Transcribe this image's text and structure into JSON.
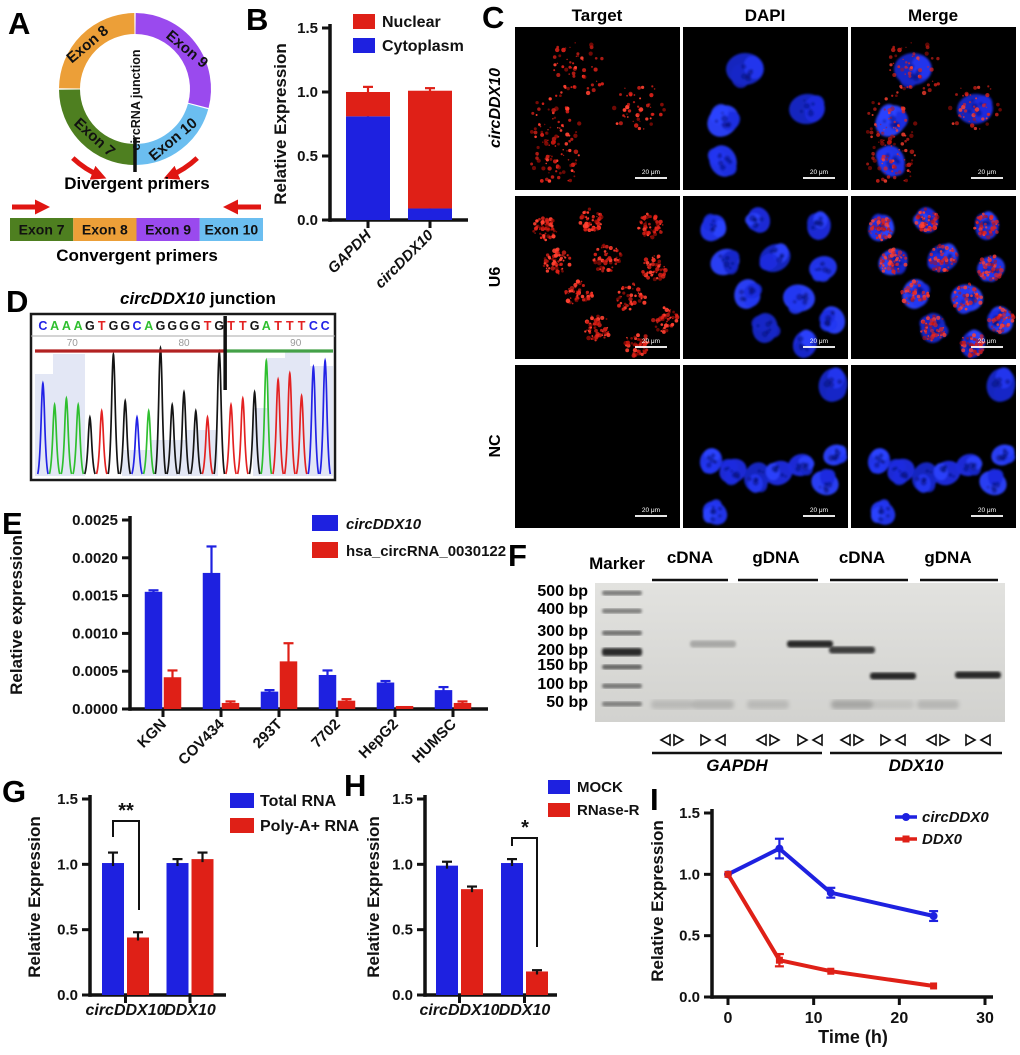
{
  "colors": {
    "blue": "#1E21E0",
    "red": "#DF2017",
    "orange": "#EC9F38",
    "purple": "#9A4AEE",
    "light_blue": "#6BBEF0",
    "green": "#4E7F20",
    "arrow_red": "#E01612",
    "trace_shade": "#DCE1F2"
  },
  "panels": {
    "A": {
      "letter": "A",
      "junction_label": "circRNA junction",
      "divergent_caption": "Divergent primers",
      "convergent_caption": "Convergent primers",
      "circle_exons": [
        {
          "name": "Exon 9",
          "color": "purple",
          "start": 0,
          "end": 105
        },
        {
          "name": "Exon 10",
          "color": "light_blue",
          "start": 105,
          "end": 180
        },
        {
          "name": "Exon 7",
          "color": "green",
          "start": 180,
          "end": 270
        },
        {
          "name": "Exon 8",
          "color": "orange",
          "start": 270,
          "end": 360
        }
      ],
      "linear_exons": [
        {
          "name": "Exon 7",
          "color": "green"
        },
        {
          "name": "Exon 8",
          "color": "orange"
        },
        {
          "name": "Exon 9",
          "color": "purple"
        },
        {
          "name": "Exon 10",
          "color": "light_blue"
        }
      ]
    },
    "B": {
      "letter": "B"
    },
    "C": {
      "letter": "C",
      "col_headers": [
        "Target",
        "DAPI",
        "Merge"
      ],
      "row_labels": [
        "circDDX10",
        "U6",
        "NC"
      ],
      "scale_bar_label": "20 μm"
    },
    "D": {
      "letter": "D",
      "title_gene": "circDDX10",
      "title_suffix": " junction",
      "sequence": "CAAAGTGGCAGGGGTGTTGATTTCC",
      "junction_after": 16,
      "position_labels": [
        {
          "text": "70",
          "index": 2.5
        },
        {
          "text": "80",
          "index": 12
        },
        {
          "text": "90",
          "index": 21.5
        }
      ],
      "base_colors": {
        "A": "#2FBF2F",
        "C": "#2222E6",
        "G": "#141414",
        "T": "#E32222"
      }
    },
    "E": {
      "letter": "E"
    },
    "F": {
      "letter": "F",
      "marker_label": "Marker",
      "group_headers": [
        "cDNA",
        "gDNA",
        "cDNA",
        "gDNA"
      ],
      "bp_labels": [
        "500 bp",
        "400 bp",
        "300 bp",
        "200 bp",
        "150 bp",
        "100 bp",
        "50 bp"
      ],
      "gene_labels": [
        "GAPDH",
        "DDX10"
      ],
      "lanes": [
        {
          "primer": "divergent",
          "band_bp": null,
          "intensity": null
        },
        {
          "primer": "convergent",
          "band_bp": 230,
          "intensity": "faint"
        },
        {
          "primer": "divergent",
          "band_bp": null,
          "intensity": null
        },
        {
          "primer": "convergent",
          "band_bp": 230,
          "intensity": "strong"
        },
        {
          "primer": "divergent",
          "band_bp": 215,
          "intensity": "strong"
        },
        {
          "primer": "convergent",
          "band_bp": 120,
          "intensity": "strong"
        },
        {
          "primer": "divergent",
          "band_bp": null,
          "intensity": null
        },
        {
          "primer": "convergent",
          "band_bp": 122,
          "intensity": "strong"
        }
      ]
    },
    "G": {
      "letter": "G"
    },
    "H": {
      "letter": "H"
    },
    "I": {
      "letter": "I"
    }
  },
  "chart_data": [
    {
      "id": "B",
      "type": "bar",
      "stacked": true,
      "categories": [
        "GAPDH",
        "circDDX10"
      ],
      "categories_italic": true,
      "series": [
        {
          "name": "Nuclear",
          "color": "#DF2017",
          "values": [
            0.19,
            0.92
          ],
          "errors": [
            0.04,
            0.02
          ]
        },
        {
          "name": "Cytoplasm",
          "color": "#1E21E0",
          "values": [
            0.81,
            0.09
          ],
          "errors": [
            0.04,
            0.03
          ]
        }
      ],
      "ylabel": "Relative Expression",
      "ylim": [
        0,
        1.5
      ],
      "yticks": [
        0,
        0.5,
        1,
        1.5
      ],
      "legend_position": "top-right",
      "grid": false
    },
    {
      "id": "E",
      "type": "bar",
      "categories": [
        "KGN",
        "COV434",
        "293T",
        "7702",
        "HepG2",
        "HUMSC"
      ],
      "series": [
        {
          "name": "circDDX10",
          "italic": true,
          "color": "#1E21E0",
          "values": [
            0.00155,
            0.0018,
            0.00023,
            0.00045,
            0.00035,
            0.00025
          ],
          "errors": [
            2e-05,
            0.00035,
            2e-05,
            6e-05,
            2e-05,
            4e-05
          ]
        },
        {
          "name": "hsa_circRNA_0030122",
          "color": "#DF2017",
          "values": [
            0.00042,
            8e-05,
            0.00063,
            0.00011,
            4e-05,
            8e-05
          ],
          "errors": [
            9e-05,
            2e-05,
            0.00024,
            2e-05,
            1e-05,
            2e-05
          ]
        }
      ],
      "ylabel": "Relative expression",
      "ylim": [
        0,
        0.0025
      ],
      "yticks": [
        0,
        0.0005,
        0.001,
        0.0015,
        0.002,
        0.0025
      ],
      "legend_position": "top-right",
      "grid": false
    },
    {
      "id": "G",
      "type": "bar",
      "categories": [
        "circDDX10",
        "DDX10"
      ],
      "categories_italic": true,
      "series": [
        {
          "name": "Total RNA",
          "color": "#1E21E0",
          "values": [
            1.01,
            1.01
          ],
          "errors": [
            0.08,
            0.03
          ]
        },
        {
          "name": "Poly-A+ RNA",
          "color": "#DF2017",
          "values": [
            0.44,
            1.04
          ],
          "errors": [
            0.04,
            0.05
          ]
        }
      ],
      "ylabel": "Relative Expression",
      "ylim": [
        0,
        1.5
      ],
      "yticks": [
        0,
        0.5,
        1,
        1.5
      ],
      "significance": {
        "label": "**",
        "category": "circDDX10"
      },
      "legend_position": "top-right",
      "grid": false
    },
    {
      "id": "H",
      "type": "bar",
      "categories": [
        "circDDX10",
        "DDX10"
      ],
      "categories_italic": true,
      "series": [
        {
          "name": "MOCK",
          "color": "#1E21E0",
          "values": [
            0.99,
            1.01
          ],
          "errors": [
            0.03,
            0.03
          ]
        },
        {
          "name": "RNase-R",
          "color": "#DF2017",
          "values": [
            0.81,
            0.18
          ],
          "errors": [
            0.02,
            0.01
          ]
        }
      ],
      "ylabel": "Relative Expression",
      "ylim": [
        0,
        1.5
      ],
      "yticks": [
        0,
        0.5,
        1,
        1.5
      ],
      "significance": {
        "label": "*",
        "category": "DDX10"
      },
      "legend_position": "top-right",
      "grid": false
    },
    {
      "id": "I",
      "type": "line",
      "x": [
        0,
        6,
        12,
        24
      ],
      "series": [
        {
          "name": "circDDX0",
          "italic": true,
          "color": "#1E21E0",
          "marker": "circle",
          "values": [
            1.0,
            1.21,
            0.85,
            0.66
          ],
          "errors": [
            0.02,
            0.08,
            0.04,
            0.04
          ]
        },
        {
          "name": "DDX0",
          "italic": true,
          "color": "#DF2017",
          "marker": "square",
          "values": [
            1.0,
            0.3,
            0.21,
            0.09
          ],
          "errors": [
            0.02,
            0.05,
            0.02,
            0.01
          ]
        }
      ],
      "xlabel": "Time (h)",
      "ylabel": "Relative Expression",
      "xlim": [
        -2,
        30
      ],
      "xticks": [
        0,
        10,
        20,
        30
      ],
      "ylim": [
        0,
        1.5
      ],
      "yticks": [
        0,
        0.5,
        1,
        1.5
      ],
      "legend_position": "top-right",
      "grid": false
    }
  ]
}
